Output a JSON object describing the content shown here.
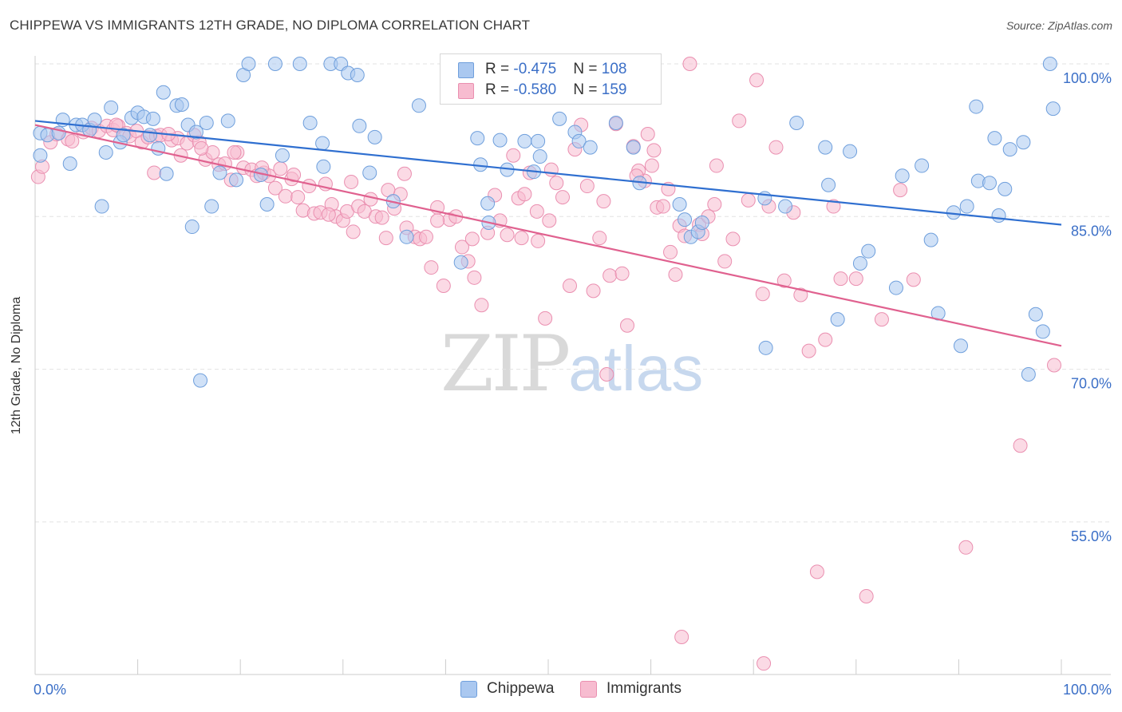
{
  "header": {
    "title": "CHIPPEWA VS IMMIGRANTS 12TH GRADE, NO DIPLOMA CORRELATION CHART",
    "source": "Source: ZipAtlas.com"
  },
  "legend_top": {
    "rows": [
      {
        "r_label": "R = ",
        "r_value": "-0.475",
        "n_label": "N = ",
        "n_value": "108",
        "color": "#aac8f0"
      },
      {
        "r_label": "R = ",
        "r_value": "-0.580",
        "n_label": "N = ",
        "n_value": "159",
        "color": "#f7bcd0"
      }
    ]
  },
  "legend_bottom": [
    {
      "label": "Chippewa",
      "color": "#aac8f0"
    },
    {
      "label": "Immigrants",
      "color": "#f7bcd0"
    }
  ],
  "watermark": {
    "zip": "ZIP",
    "atlas": "atlas"
  },
  "chart_data": {
    "type": "scatter",
    "title": "CHIPPEWA VS IMMIGRANTS 12TH GRADE, NO DIPLOMA CORRELATION CHART",
    "xlabel": "",
    "ylabel": "12th Grade, No Diploma",
    "xlim": [
      0,
      100
    ],
    "ylim": [
      40,
      101.5
    ],
    "x_tick_labels": [
      "0.0%",
      "100.0%"
    ],
    "y_ticks": [
      100,
      85,
      70,
      55
    ],
    "y_tick_labels": [
      "100.0%",
      "85.0%",
      "70.0%",
      "55.0%"
    ],
    "grid": "horizontal dashed",
    "legend": "top-center",
    "colors": {
      "Chippewa_fill": "#aac8f0",
      "Chippewa_stroke": "#6f9fdc",
      "Chippewa_line": "#2f6fd0",
      "Immigrants_fill": "#f7bcd0",
      "Immigrants_stroke": "#ea8fb0",
      "Immigrants_line": "#e0618f",
      "tick_label": "#3b6fc7"
    },
    "series": [
      {
        "name": "Chippewa",
        "trend": {
          "x": [
            0,
            100
          ],
          "y": [
            94.4,
            84.2
          ]
        },
        "points": [
          [
            0.5,
            91.0
          ],
          [
            0.5,
            93.2
          ],
          [
            1.2,
            93.0
          ],
          [
            2.3,
            93.2
          ],
          [
            2.7,
            94.5
          ],
          [
            3.4,
            90.2
          ],
          [
            4.0,
            94.0
          ],
          [
            4.6,
            94.0
          ],
          [
            5.3,
            93.5
          ],
          [
            5.8,
            94.5
          ],
          [
            6.5,
            86.0
          ],
          [
            6.9,
            91.3
          ],
          [
            7.4,
            95.7
          ],
          [
            8.3,
            92.3
          ],
          [
            8.6,
            93.0
          ],
          [
            9.4,
            94.7
          ],
          [
            10.0,
            95.2
          ],
          [
            10.6,
            94.8
          ],
          [
            11.2,
            93.0
          ],
          [
            11.5,
            94.6
          ],
          [
            12.0,
            91.7
          ],
          [
            12.5,
            97.2
          ],
          [
            12.8,
            89.2
          ],
          [
            13.8,
            95.9
          ],
          [
            14.3,
            96.0
          ],
          [
            14.9,
            94.0
          ],
          [
            15.3,
            84.0
          ],
          [
            15.7,
            93.3
          ],
          [
            16.1,
            68.9
          ],
          [
            16.7,
            94.2
          ],
          [
            17.2,
            86.0
          ],
          [
            18.0,
            89.3
          ],
          [
            18.8,
            94.4
          ],
          [
            19.6,
            88.6
          ],
          [
            20.3,
            98.9
          ],
          [
            20.8,
            100.0
          ],
          [
            22.0,
            89.1
          ],
          [
            22.6,
            86.2
          ],
          [
            23.4,
            100.0
          ],
          [
            24.1,
            91.0
          ],
          [
            25.8,
            100.0
          ],
          [
            26.8,
            94.2
          ],
          [
            28.0,
            92.2
          ],
          [
            28.1,
            89.9
          ],
          [
            28.8,
            100.0
          ],
          [
            29.8,
            100.0
          ],
          [
            30.5,
            99.1
          ],
          [
            31.4,
            98.9
          ],
          [
            31.6,
            93.9
          ],
          [
            32.6,
            89.3
          ],
          [
            33.1,
            92.8
          ],
          [
            34.9,
            86.5
          ],
          [
            36.2,
            83.0
          ],
          [
            37.4,
            95.9
          ],
          [
            41.5,
            80.5
          ],
          [
            43.1,
            92.7
          ],
          [
            43.4,
            90.1
          ],
          [
            44.1,
            86.3
          ],
          [
            44.2,
            84.4
          ],
          [
            45.3,
            92.5
          ],
          [
            46.0,
            89.6
          ],
          [
            47.7,
            92.4
          ],
          [
            48.6,
            89.4
          ],
          [
            49.0,
            92.4
          ],
          [
            49.2,
            90.9
          ],
          [
            51.1,
            94.6
          ],
          [
            52.6,
            93.3
          ],
          [
            53.0,
            92.4
          ],
          [
            54.1,
            91.8
          ],
          [
            56.6,
            94.2
          ],
          [
            58.3,
            91.8
          ],
          [
            58.9,
            88.3
          ],
          [
            62.8,
            86.2
          ],
          [
            63.3,
            84.7
          ],
          [
            63.9,
            83.0
          ],
          [
            64.6,
            83.5
          ],
          [
            65.0,
            84.4
          ],
          [
            71.2,
            72.1
          ],
          [
            71.1,
            86.8
          ],
          [
            73.1,
            86.0
          ],
          [
            74.2,
            94.2
          ],
          [
            77.0,
            91.8
          ],
          [
            77.3,
            88.1
          ],
          [
            78.2,
            74.9
          ],
          [
            79.4,
            91.4
          ],
          [
            80.4,
            80.4
          ],
          [
            81.2,
            81.6
          ],
          [
            83.9,
            78.0
          ],
          [
            84.5,
            89.0
          ],
          [
            86.4,
            90.0
          ],
          [
            87.3,
            82.7
          ],
          [
            89.5,
            85.4
          ],
          [
            90.2,
            72.3
          ],
          [
            91.7,
            95.8
          ],
          [
            91.9,
            88.5
          ],
          [
            93.9,
            85.1
          ],
          [
            94.5,
            87.7
          ],
          [
            96.3,
            92.3
          ],
          [
            96.8,
            69.5
          ],
          [
            97.5,
            75.4
          ],
          [
            98.2,
            73.7
          ],
          [
            99.2,
            95.6
          ],
          [
            98.9,
            100.0
          ],
          [
            95.0,
            91.6
          ],
          [
            93.0,
            88.3
          ],
          [
            88.0,
            75.5
          ],
          [
            90.8,
            86.0
          ],
          [
            93.5,
            92.7
          ]
        ]
      },
      {
        "name": "Immigrants",
        "trend": {
          "x": [
            0,
            100
          ],
          "y": [
            94.0,
            72.3
          ]
        },
        "points": [
          [
            0.3,
            88.9
          ],
          [
            0.7,
            89.9
          ],
          [
            1.5,
            92.3
          ],
          [
            2.1,
            93.1
          ],
          [
            3.2,
            92.6
          ],
          [
            3.6,
            92.4
          ],
          [
            4.7,
            93.3
          ],
          [
            5.5,
            93.7
          ],
          [
            6.2,
            93.4
          ],
          [
            7.0,
            93.9
          ],
          [
            7.6,
            93.5
          ],
          [
            8.1,
            93.9
          ],
          [
            8.9,
            93.2
          ],
          [
            9.2,
            92.9
          ],
          [
            9.9,
            93.4
          ],
          [
            10.4,
            92.3
          ],
          [
            11.0,
            92.8
          ],
          [
            11.8,
            92.9
          ],
          [
            12.2,
            93.0
          ],
          [
            13.3,
            92.5
          ],
          [
            13.9,
            92.7
          ],
          [
            14.2,
            91.0
          ],
          [
            14.8,
            92.2
          ],
          [
            15.5,
            93.0
          ],
          [
            16.0,
            92.3
          ],
          [
            16.6,
            90.6
          ],
          [
            17.3,
            91.3
          ],
          [
            17.9,
            90.1
          ],
          [
            18.5,
            90.2
          ],
          [
            19.1,
            88.6
          ],
          [
            19.7,
            91.3
          ],
          [
            20.3,
            89.8
          ],
          [
            21.1,
            89.6
          ],
          [
            21.6,
            89.0
          ],
          [
            22.3,
            89.3
          ],
          [
            22.8,
            89.0
          ],
          [
            23.4,
            87.8
          ],
          [
            23.9,
            89.7
          ],
          [
            24.4,
            87.0
          ],
          [
            25.0,
            88.7
          ],
          [
            25.6,
            86.9
          ],
          [
            26.1,
            85.6
          ],
          [
            26.7,
            88.0
          ],
          [
            27.2,
            85.3
          ],
          [
            27.8,
            85.4
          ],
          [
            28.3,
            88.2
          ],
          [
            28.9,
            86.2
          ],
          [
            29.3,
            85.0
          ],
          [
            30.0,
            84.6
          ],
          [
            30.4,
            85.5
          ],
          [
            31.0,
            83.5
          ],
          [
            31.5,
            86.0
          ],
          [
            32.1,
            85.5
          ],
          [
            32.7,
            86.7
          ],
          [
            33.2,
            85.0
          ],
          [
            33.8,
            84.9
          ],
          [
            34.2,
            82.9
          ],
          [
            35.0,
            85.8
          ],
          [
            35.6,
            87.2
          ],
          [
            36.2,
            83.9
          ],
          [
            37.0,
            83.0
          ],
          [
            37.5,
            82.8
          ],
          [
            38.1,
            83.0
          ],
          [
            38.6,
            80.0
          ],
          [
            39.2,
            85.9
          ],
          [
            39.8,
            78.2
          ],
          [
            40.4,
            84.7
          ],
          [
            41.0,
            85.0
          ],
          [
            41.6,
            82.0
          ],
          [
            42.2,
            80.6
          ],
          [
            42.8,
            79.0
          ],
          [
            43.5,
            76.3
          ],
          [
            44.1,
            83.4
          ],
          [
            44.8,
            87.1
          ],
          [
            45.3,
            84.6
          ],
          [
            46.0,
            83.2
          ],
          [
            46.6,
            91.0
          ],
          [
            47.1,
            86.8
          ],
          [
            47.7,
            87.2
          ],
          [
            48.2,
            89.3
          ],
          [
            49.0,
            82.6
          ],
          [
            49.7,
            75.0
          ],
          [
            50.1,
            84.6
          ],
          [
            50.8,
            88.3
          ],
          [
            51.4,
            86.9
          ],
          [
            52.1,
            78.2
          ],
          [
            52.6,
            91.6
          ],
          [
            53.2,
            94.0
          ],
          [
            53.8,
            88.0
          ],
          [
            54.4,
            77.7
          ],
          [
            55.0,
            82.9
          ],
          [
            55.4,
            86.5
          ],
          [
            56.0,
            79.2
          ],
          [
            56.6,
            94.1
          ],
          [
            57.2,
            79.4
          ],
          [
            57.7,
            74.3
          ],
          [
            58.3,
            91.9
          ],
          [
            58.8,
            89.5
          ],
          [
            59.4,
            88.5
          ],
          [
            60.1,
            90.0
          ],
          [
            60.6,
            85.9
          ],
          [
            61.2,
            86.0
          ],
          [
            61.9,
            81.5
          ],
          [
            62.4,
            79.3
          ],
          [
            62.8,
            84.1
          ],
          [
            63.3,
            83.1
          ],
          [
            63.8,
            100.0
          ],
          [
            64.7,
            84.2
          ],
          [
            65.0,
            83.3
          ],
          [
            65.6,
            85.0
          ],
          [
            66.4,
            90.0
          ],
          [
            67.2,
            80.6
          ],
          [
            68.6,
            94.4
          ],
          [
            69.5,
            86.6
          ],
          [
            70.3,
            98.4
          ],
          [
            70.9,
            77.4
          ],
          [
            71.5,
            86.0
          ],
          [
            72.2,
            91.8
          ],
          [
            73.0,
            78.7
          ],
          [
            73.9,
            85.4
          ],
          [
            74.6,
            77.3
          ],
          [
            75.4,
            71.8
          ],
          [
            76.2,
            50.1
          ],
          [
            77.0,
            72.9
          ],
          [
            77.8,
            86.0
          ],
          [
            78.5,
            78.9
          ],
          [
            80.0,
            78.9
          ],
          [
            81.0,
            47.7
          ],
          [
            82.5,
            74.9
          ],
          [
            84.3,
            87.6
          ],
          [
            85.6,
            78.8
          ],
          [
            90.7,
            52.5
          ],
          [
            96.0,
            62.5
          ],
          [
            99.3,
            70.4
          ],
          [
            66.2,
            86.2
          ],
          [
            68.0,
            82.8
          ],
          [
            63.0,
            43.7
          ],
          [
            71.0,
            41.1
          ],
          [
            55.7,
            69.5
          ],
          [
            60.3,
            91.5
          ],
          [
            59.7,
            93.1
          ],
          [
            61.7,
            87.7
          ],
          [
            58.6,
            89.0
          ],
          [
            48.9,
            85.5
          ],
          [
            47.4,
            82.9
          ],
          [
            50.3,
            89.6
          ],
          [
            39.2,
            84.6
          ],
          [
            42.6,
            82.8
          ],
          [
            36.0,
            89.2
          ],
          [
            34.4,
            87.6
          ],
          [
            30.8,
            88.4
          ],
          [
            28.6,
            85.2
          ],
          [
            25.2,
            89.1
          ],
          [
            22.1,
            89.8
          ],
          [
            16.2,
            91.7
          ],
          [
            19.4,
            91.3
          ],
          [
            11.6,
            89.3
          ],
          [
            13.0,
            93.1
          ],
          [
            7.9,
            94.0
          ]
        ]
      }
    ]
  }
}
